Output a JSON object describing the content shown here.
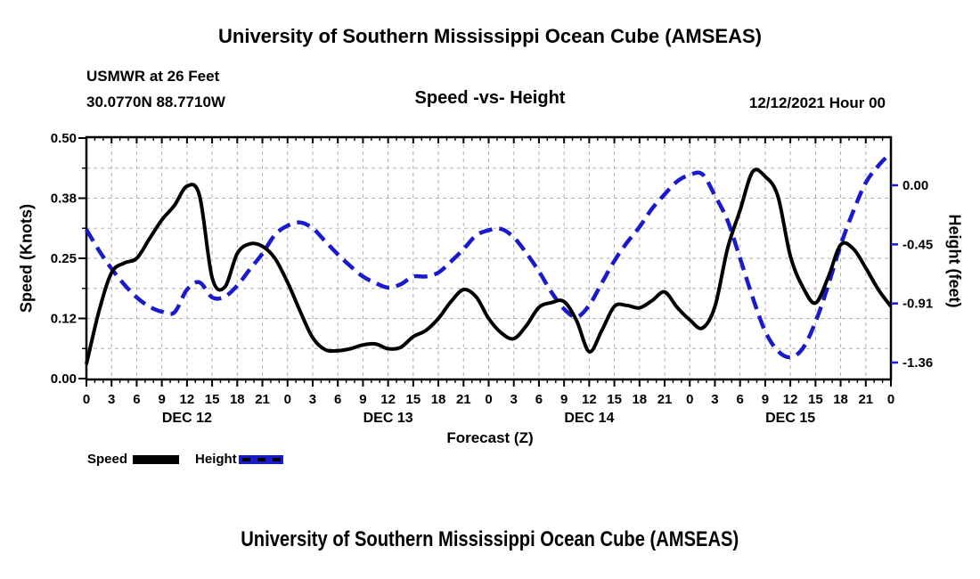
{
  "header": {
    "title": "University of Southern Mississippi Ocean Cube (AMSEAS)",
    "station": "USMWR at 26 Feet",
    "coords": "30.0770N  88.7710W",
    "chart_title": "Speed -vs- Height",
    "datetime": "12/12/2021 Hour 00"
  },
  "footer": {
    "title": "University of Southern Mississippi Ocean Cube (AMSEAS)"
  },
  "legend": {
    "speed_label": "Speed",
    "height_label": "Height"
  },
  "axes": {
    "left_title": "Speed (Knots)",
    "right_title": "Height (feet)",
    "x_title": "Forecast (Z)",
    "left_ticks": [
      {
        "label": "0.50",
        "value": 0.5
      },
      {
        "label": "0.38",
        "value": 0.375
      },
      {
        "label": "0.25",
        "value": 0.25
      },
      {
        "label": "0.12",
        "value": 0.125
      },
      {
        "label": "0.00",
        "value": 0.0
      }
    ],
    "right_ticks": [
      {
        "label": "0.00",
        "value": 0.0
      },
      {
        "label": "-0.45",
        "value": -0.4533
      },
      {
        "label": "-0.91",
        "value": -0.9067
      },
      {
        "label": "-1.36",
        "value": -1.36
      }
    ],
    "x_hour_labels": [
      "0",
      "3",
      "6",
      "9",
      "12",
      "15",
      "18",
      "21",
      "0",
      "3",
      "6",
      "9",
      "12",
      "15",
      "18",
      "21",
      "0",
      "3",
      "6",
      "9",
      "12",
      "15",
      "18",
      "21",
      "0",
      "3",
      "6",
      "9",
      "12",
      "15",
      "18",
      "21",
      "0"
    ],
    "day_labels": [
      "DEC 12",
      "DEC 13",
      "DEC 14",
      "DEC 15"
    ]
  },
  "colors": {
    "speed": "#000000",
    "height": "#1a1acd",
    "grid": "#b0b0b0"
  },
  "chart_data": {
    "type": "line",
    "title": "Speed -vs- Height",
    "xlabel": "Forecast (Z)",
    "x_unit": "hours from 2021-12-12 00Z",
    "x_range": [
      0,
      96
    ],
    "x_major_tick_hours": 3,
    "x_minor_tick_hours": 1,
    "grid": "dashed gray at 3-hour verticals and 0.0625-knot horizontals",
    "legend_position": "below plot, left",
    "left_axis": {
      "label": "Speed (Knots)",
      "range": [
        0,
        0.5
      ],
      "tick_labels": [
        "0.00",
        "0.12",
        "0.25",
        "0.38",
        "0.50"
      ]
    },
    "right_axis": {
      "label": "Height (feet)",
      "tick_labels": [
        "0.00",
        "-0.45",
        "-0.91",
        "-1.36"
      ],
      "range_top": 0.36,
      "range_bottom": -1.49
    },
    "hours": [
      0,
      1.5,
      3,
      4.5,
      6,
      7.5,
      9,
      10.5,
      12,
      13.5,
      15,
      16.5,
      18,
      19.5,
      21,
      22.5,
      24,
      25.5,
      27,
      28.5,
      30,
      31.5,
      33,
      34.5,
      36,
      37.5,
      39,
      40.5,
      42,
      43.5,
      45,
      46.5,
      48,
      49.5,
      51,
      52.5,
      54,
      55.5,
      57,
      58.5,
      60,
      61.5,
      63,
      64.5,
      66,
      67.5,
      69,
      70.5,
      72,
      73.5,
      75,
      76.5,
      78,
      79.5,
      81,
      82.5,
      84,
      85.5,
      87,
      88.5,
      90,
      91.5,
      93,
      94.5,
      96
    ],
    "series": [
      {
        "name": "Speed",
        "axis": "left",
        "units": "knots",
        "style": "solid",
        "color": "#000000",
        "values": [
          0.03,
          0.14,
          0.22,
          0.24,
          0.25,
          0.29,
          0.33,
          0.36,
          0.4,
          0.38,
          0.21,
          0.19,
          0.26,
          0.28,
          0.275,
          0.25,
          0.2,
          0.14,
          0.085,
          0.06,
          0.058,
          0.062,
          0.07,
          0.072,
          0.062,
          0.065,
          0.087,
          0.1,
          0.125,
          0.16,
          0.185,
          0.17,
          0.125,
          0.095,
          0.083,
          0.11,
          0.148,
          0.158,
          0.16,
          0.12,
          0.056,
          0.1,
          0.15,
          0.152,
          0.147,
          0.162,
          0.18,
          0.148,
          0.122,
          0.105,
          0.15,
          0.27,
          0.35,
          0.43,
          0.42,
          0.38,
          0.255,
          0.19,
          0.157,
          0.21,
          0.278,
          0.27,
          0.23,
          0.185,
          0.15
        ]
      },
      {
        "name": "Height",
        "axis": "right",
        "units": "feet",
        "style": "dashed",
        "color": "#1a1acd",
        "values": [
          -0.34,
          -0.5,
          -0.64,
          -0.76,
          -0.86,
          -0.93,
          -0.97,
          -0.975,
          -0.8,
          -0.745,
          -0.86,
          -0.855,
          -0.77,
          -0.645,
          -0.525,
          -0.38,
          -0.31,
          -0.285,
          -0.33,
          -0.43,
          -0.53,
          -0.62,
          -0.7,
          -0.75,
          -0.785,
          -0.76,
          -0.7,
          -0.7,
          -0.67,
          -0.585,
          -0.49,
          -0.385,
          -0.345,
          -0.335,
          -0.4,
          -0.52,
          -0.66,
          -0.82,
          -0.95,
          -1.01,
          -0.92,
          -0.75,
          -0.58,
          -0.44,
          -0.32,
          -0.18,
          -0.07,
          0.03,
          0.08,
          0.085,
          -0.08,
          -0.27,
          -0.56,
          -0.86,
          -1.12,
          -1.27,
          -1.32,
          -1.25,
          -1.05,
          -0.77,
          -0.46,
          -0.2,
          0.02,
          0.15,
          0.25
        ]
      }
    ]
  }
}
